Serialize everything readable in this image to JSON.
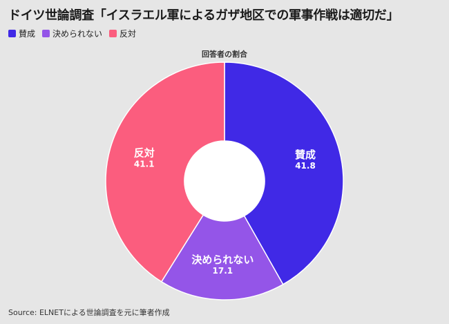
{
  "title": "ドイツ世論調査「イスラエル軍によるガザ地区での軍事作戦は適切だ」",
  "source": "Source: ELNETによる世論調査を元に筆者作成",
  "chart_data": {
    "type": "pie",
    "subtitle": "回答者の割合",
    "categories": [
      "賛成",
      "決められない",
      "反対"
    ],
    "values": [
      41.8,
      17.1,
      41.1
    ],
    "value_labels": [
      "41.8",
      "17.1",
      "41.1"
    ],
    "colors": [
      "#4029e6",
      "#9455e8",
      "#fb5d7e"
    ],
    "legend_position": "top-left",
    "donut": true
  }
}
